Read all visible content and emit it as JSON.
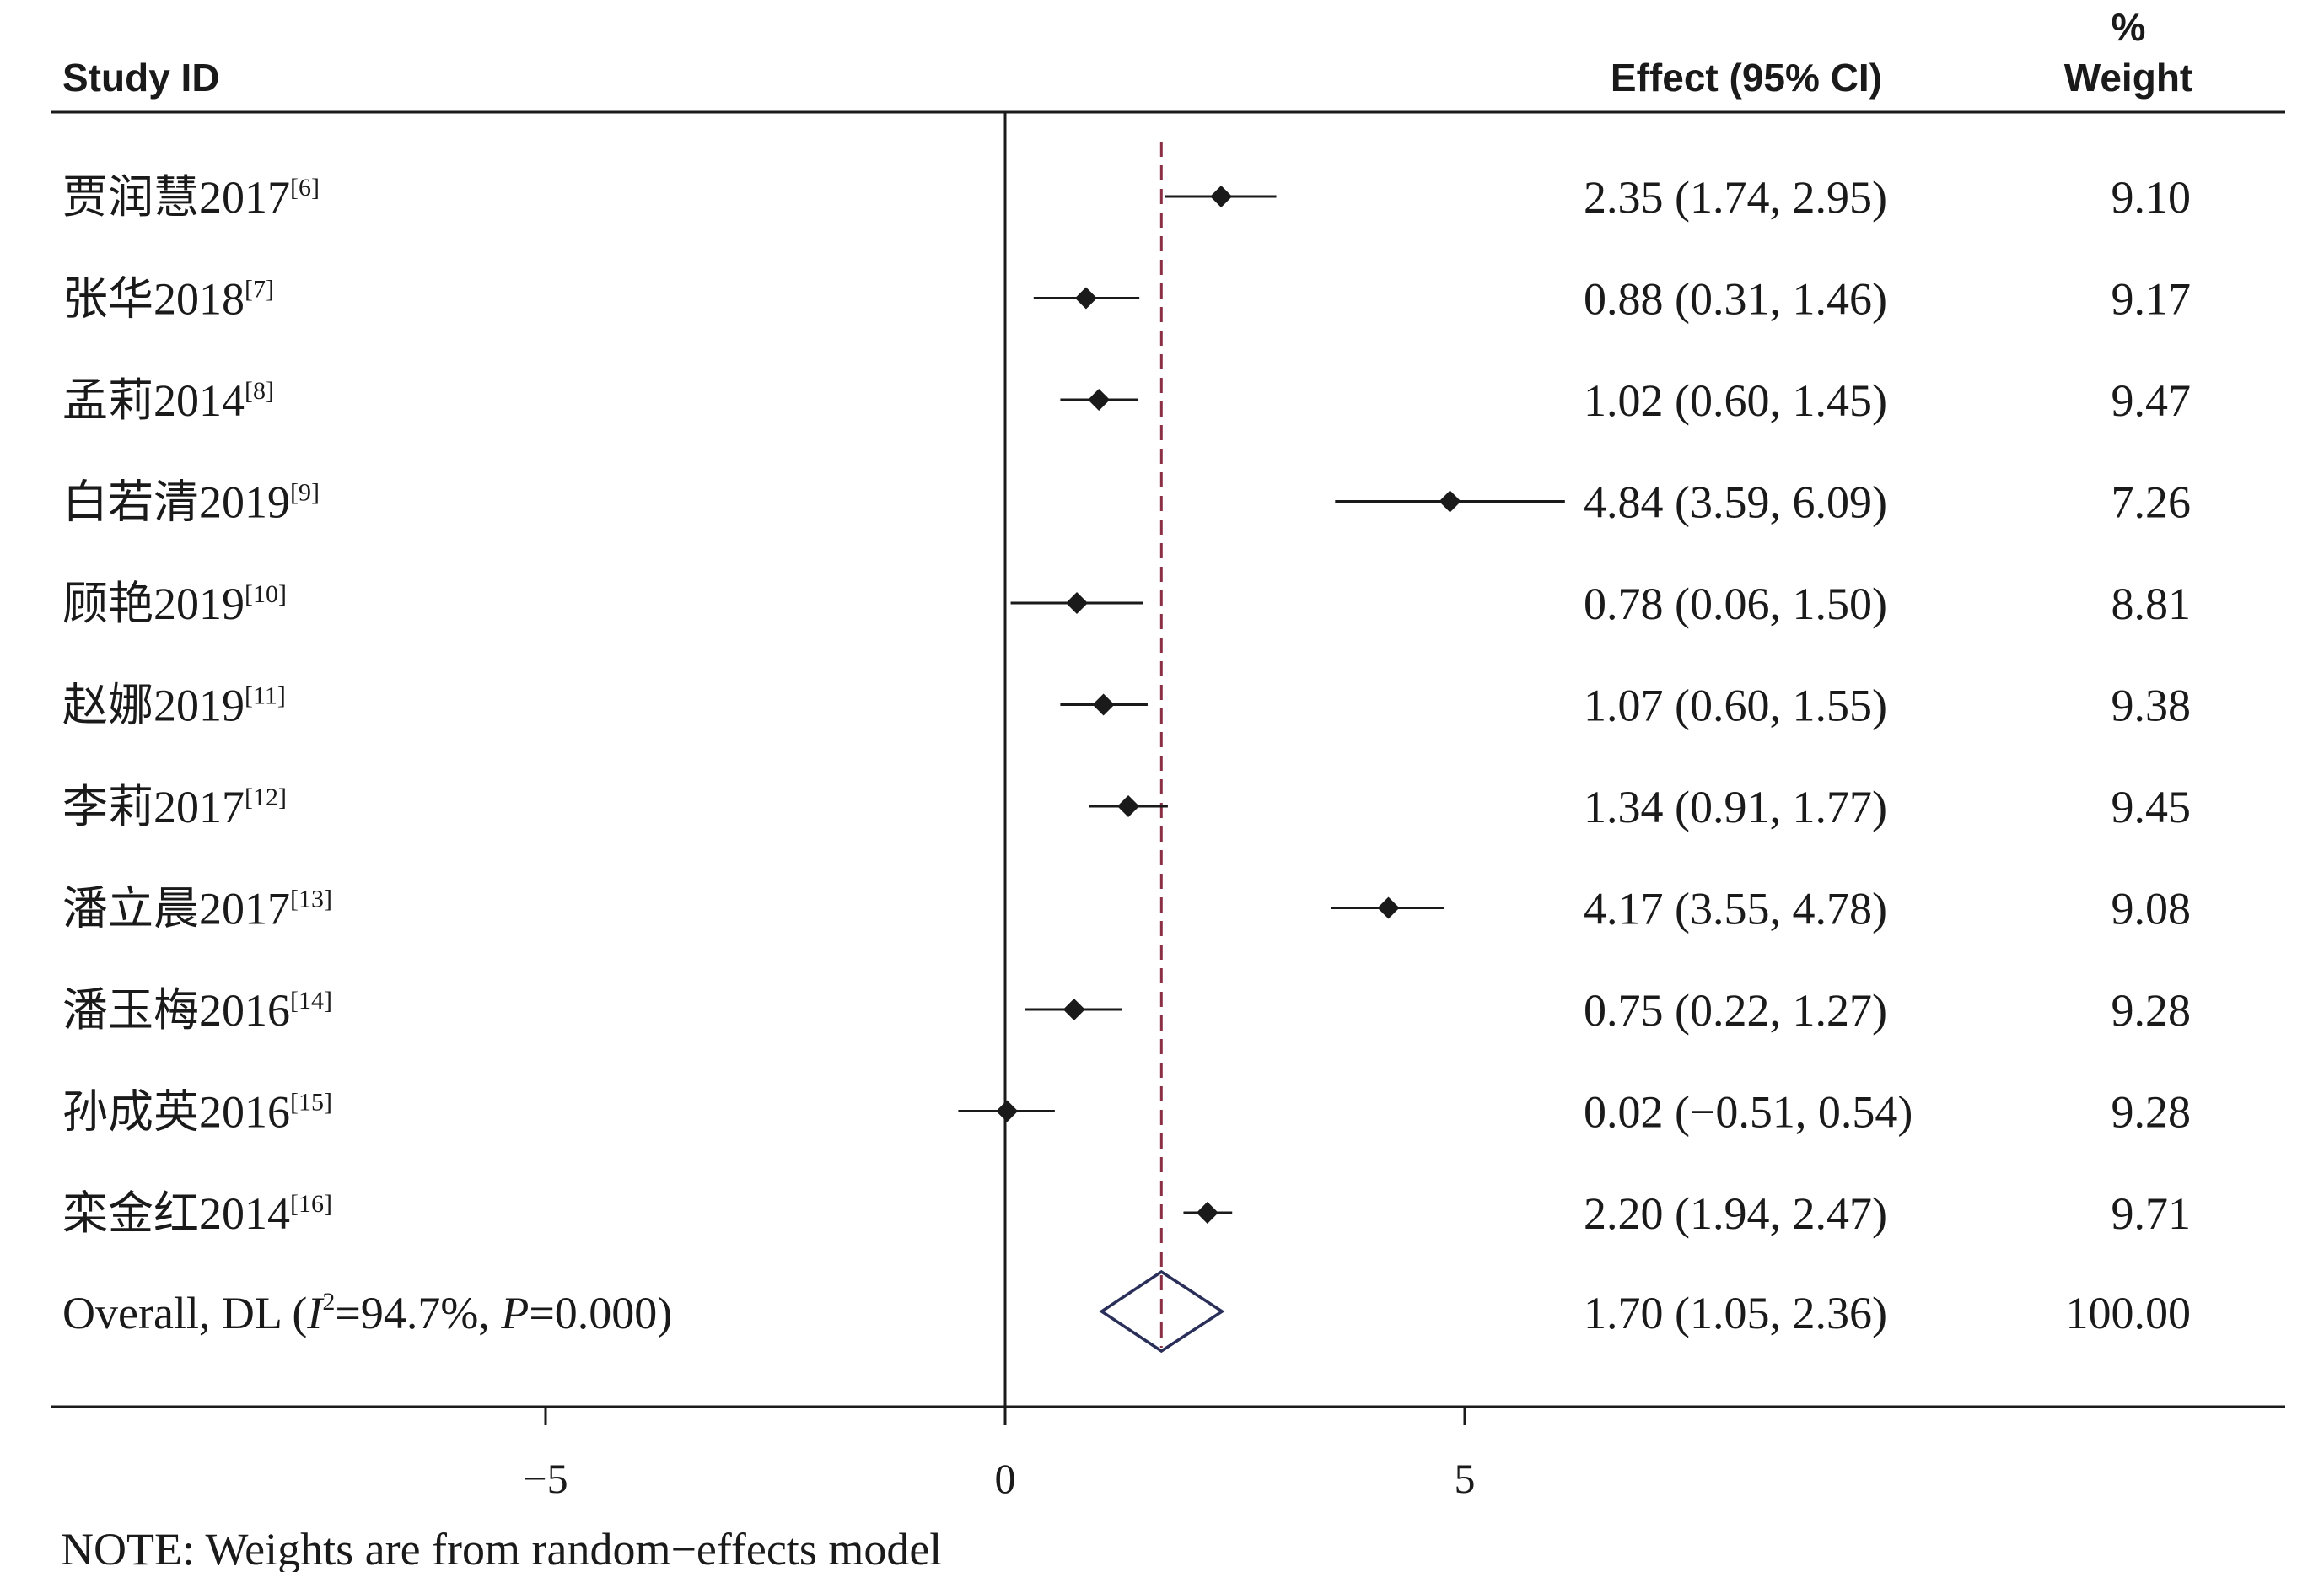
{
  "headers": {
    "study": "Study ID",
    "effect": "Effect (95% CI)",
    "weight_line1": "%",
    "weight_line2": "Weight"
  },
  "note": "NOTE: Weights are from random−effects model",
  "colors": {
    "text": "#1a1a1a",
    "reference_line": "#8b2f45",
    "diamond": "#2a2f5a"
  },
  "chart_data": {
    "type": "forest",
    "xaxis": {
      "ticks": [
        -5,
        0,
        5
      ],
      "tick_labels": [
        "−5",
        "0",
        "5"
      ],
      "range": [
        -5,
        5
      ],
      "null_line": 0
    },
    "pooled_line": 1.7,
    "studies": [
      {
        "name": "贾润慧2017",
        "ref": "[6]",
        "effect": 2.35,
        "lo": 1.74,
        "hi": 2.95,
        "ci_text": "2.35 (1.74, 2.95)",
        "weight": "9.10"
      },
      {
        "name": "张华2018",
        "ref": "[7]",
        "effect": 0.88,
        "lo": 0.31,
        "hi": 1.46,
        "ci_text": "0.88 (0.31, 1.46)",
        "weight": "9.17"
      },
      {
        "name": "孟莉2014",
        "ref": "[8]",
        "effect": 1.02,
        "lo": 0.6,
        "hi": 1.45,
        "ci_text": "1.02 (0.60, 1.45)",
        "weight": "9.47"
      },
      {
        "name": "白若清2019",
        "ref": "[9]",
        "effect": 4.84,
        "lo": 3.59,
        "hi": 6.09,
        "ci_text": "4.84 (3.59, 6.09)",
        "weight": "7.26"
      },
      {
        "name": "顾艳2019",
        "ref": "[10]",
        "effect": 0.78,
        "lo": 0.06,
        "hi": 1.5,
        "ci_text": "0.78 (0.06, 1.50)",
        "weight": "8.81"
      },
      {
        "name": "赵娜2019",
        "ref": "[11]",
        "effect": 1.07,
        "lo": 0.6,
        "hi": 1.55,
        "ci_text": "1.07 (0.60, 1.55)",
        "weight": "9.38"
      },
      {
        "name": "李莉2017",
        "ref": "[12]",
        "effect": 1.34,
        "lo": 0.91,
        "hi": 1.77,
        "ci_text": "1.34 (0.91, 1.77)",
        "weight": "9.45"
      },
      {
        "name": "潘立晨2017",
        "ref": "[13]",
        "effect": 4.17,
        "lo": 3.55,
        "hi": 4.78,
        "ci_text": "4.17 (3.55, 4.78)",
        "weight": "9.08"
      },
      {
        "name": "潘玉梅2016",
        "ref": "[14]",
        "effect": 0.75,
        "lo": 0.22,
        "hi": 1.27,
        "ci_text": "0.75 (0.22, 1.27)",
        "weight": "9.28"
      },
      {
        "name": "孙成英2016",
        "ref": "[15]",
        "effect": 0.02,
        "lo": -0.51,
        "hi": 0.54,
        "ci_text": "0.02 (−0.51, 0.54)",
        "weight": "9.28"
      },
      {
        "name": "栾金红2014",
        "ref": "[16]",
        "effect": 2.2,
        "lo": 1.94,
        "hi": 2.47,
        "ci_text": "2.20 (1.94, 2.47)",
        "weight": "9.71"
      }
    ],
    "overall": {
      "label_prefix": "Overall, DL (",
      "i_letter": "I",
      "i_sup": "2",
      "i_value": "=94.7%, ",
      "p_letter": "P",
      "p_value": "=0.000)",
      "effect": 1.7,
      "lo": 1.05,
      "hi": 2.36,
      "ci_text": "1.70 (1.05, 2.36)",
      "weight": "100.00"
    }
  }
}
